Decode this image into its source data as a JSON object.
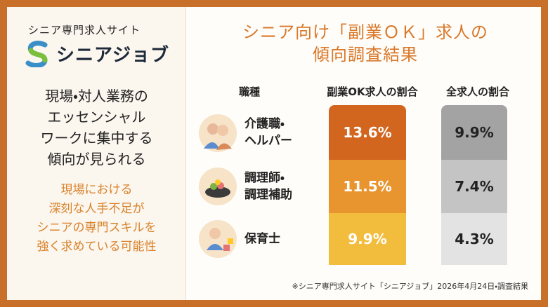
{
  "logo": {
    "tagline": "シニア専門求人サイト",
    "name": "シニアジョブ"
  },
  "left": {
    "headline": [
      "現場・対人業務の",
      "エッセンシャル",
      "ワークに集中する",
      "傾向が見られる"
    ],
    "subtext": [
      "現場における",
      "深刻な人手不足が",
      "シニアの専門スキルを",
      "強く求めている可能性"
    ]
  },
  "title": [
    "シニア向け「副業ＯＫ」求人の",
    "傾向調査結果"
  ],
  "table": {
    "headers": [
      "職種",
      "副業OK求人の割合",
      "全求人の割合"
    ],
    "rows": [
      [
        [
          "介護職・",
          "ヘルパー"
        ],
        "13.6%",
        "9.9%"
      ],
      [
        [
          "調理師・",
          "調理補助"
        ],
        "11.5%",
        "7.4%"
      ],
      [
        [
          "保育士"
        ],
        "9.9%",
        "4.3%"
      ]
    ]
  },
  "footnote": "※シニア専門求人サイト「シニアジョブ」2026年4月24日・調査結果"
}
